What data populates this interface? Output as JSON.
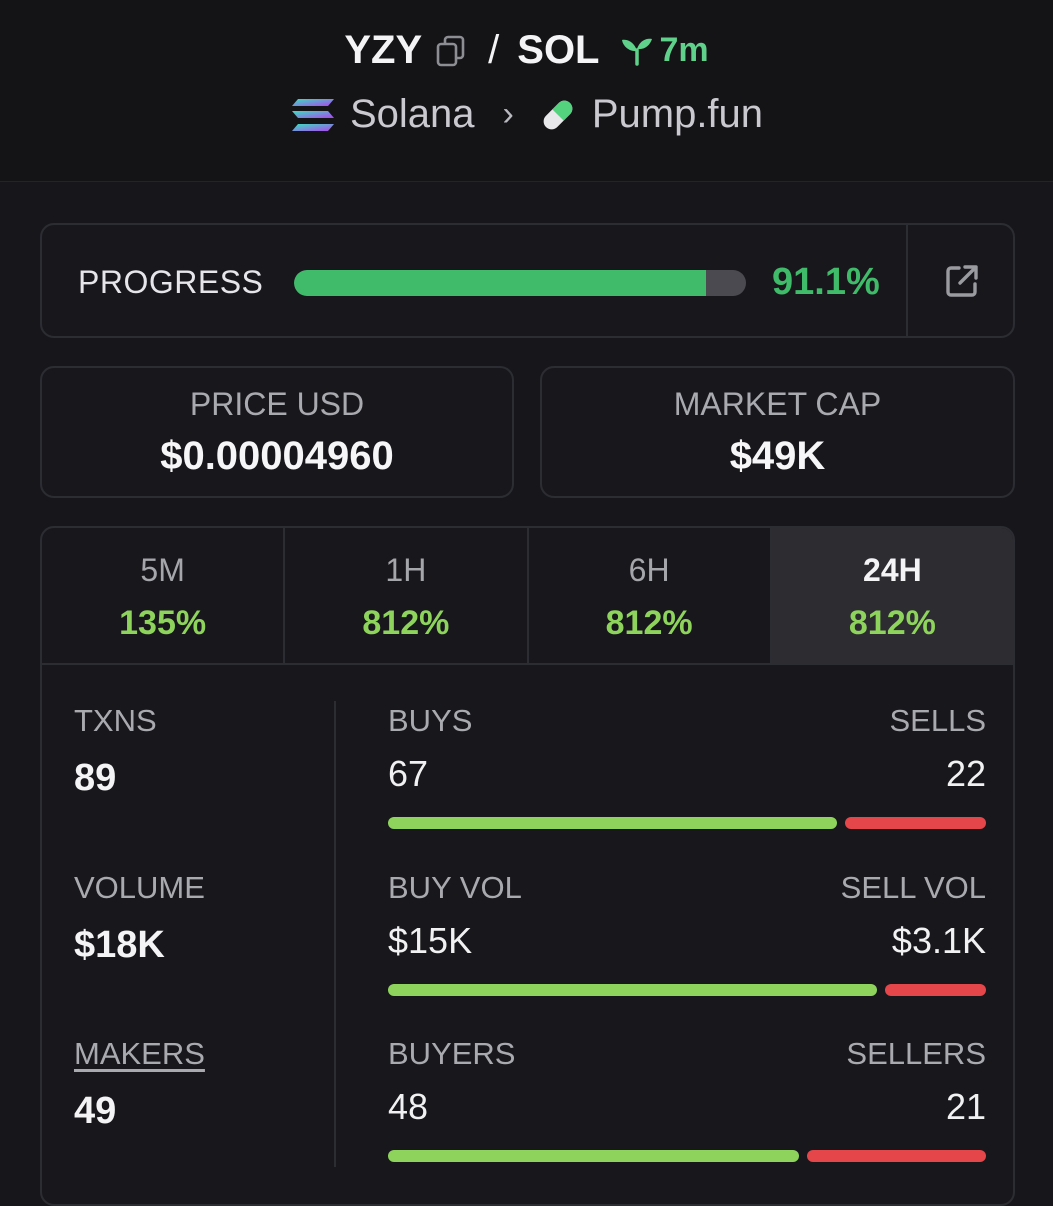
{
  "header": {
    "base": "YZY",
    "slash": "/",
    "quote": "SOL",
    "age": "7m",
    "chain": "Solana",
    "separator": "›",
    "dex": "Pump.fun"
  },
  "progress": {
    "label": "PROGRESS",
    "value": 91.1,
    "display": "91.1%"
  },
  "price": {
    "label": "PRICE USD",
    "value": "$0.00004960"
  },
  "market_cap": {
    "label": "MARKET CAP",
    "value": "$49K"
  },
  "tabs": [
    {
      "label": "5M",
      "value": "135%"
    },
    {
      "label": "1H",
      "value": "812%"
    },
    {
      "label": "6H",
      "value": "812%"
    },
    {
      "label": "24H",
      "value": "812%"
    }
  ],
  "active_tab": "24H",
  "metrics": {
    "txns": {
      "label": "TXNS",
      "value": "89"
    },
    "volume": {
      "label": "VOLUME",
      "value": "$18K"
    },
    "makers": {
      "label": "MAKERS",
      "value": "49"
    }
  },
  "splits": {
    "txns": {
      "left_label": "BUYS",
      "right_label": "SELLS",
      "left_value": "67",
      "right_value": "22",
      "buy_share": 0.761
    },
    "volume": {
      "left_label": "BUY VOL",
      "right_label": "SELL VOL",
      "left_value": "$15K",
      "right_value": "$3.1K",
      "buy_share": 0.829
    },
    "makers": {
      "left_label": "BUYERS",
      "right_label": "SELLERS",
      "left_value": "48",
      "right_value": "21",
      "buy_share": 0.696
    }
  },
  "colors": {
    "progress": "#3fbb6a",
    "positive": "#8ed45c",
    "buy_bar": "#8ed45c",
    "sell_bar": "#e4464a"
  }
}
